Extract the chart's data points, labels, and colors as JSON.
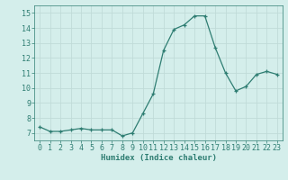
{
  "x": [
    0,
    1,
    2,
    3,
    4,
    5,
    6,
    7,
    8,
    9,
    10,
    11,
    12,
    13,
    14,
    15,
    16,
    17,
    18,
    19,
    20,
    21,
    22,
    23
  ],
  "y": [
    7.4,
    7.1,
    7.1,
    7.2,
    7.3,
    7.2,
    7.2,
    7.2,
    6.8,
    7.0,
    8.3,
    9.6,
    12.5,
    13.9,
    14.2,
    14.8,
    14.8,
    12.7,
    11.0,
    9.8,
    10.1,
    10.9,
    11.1,
    10.9
  ],
  "xlabel": "Humidex (Indice chaleur)",
  "ylim": [
    6.5,
    15.5
  ],
  "xlim": [
    -0.5,
    23.5
  ],
  "yticks": [
    7,
    8,
    9,
    10,
    11,
    12,
    13,
    14,
    15
  ],
  "xticks": [
    0,
    1,
    2,
    3,
    4,
    5,
    6,
    7,
    8,
    9,
    10,
    11,
    12,
    13,
    14,
    15,
    16,
    17,
    18,
    19,
    20,
    21,
    22,
    23
  ],
  "line_color": "#2e7d72",
  "marker": "+",
  "bg_color": "#d4eeeb",
  "grid_color": "#c0dbd8",
  "axis_fontsize": 6.5,
  "tick_fontsize": 6
}
